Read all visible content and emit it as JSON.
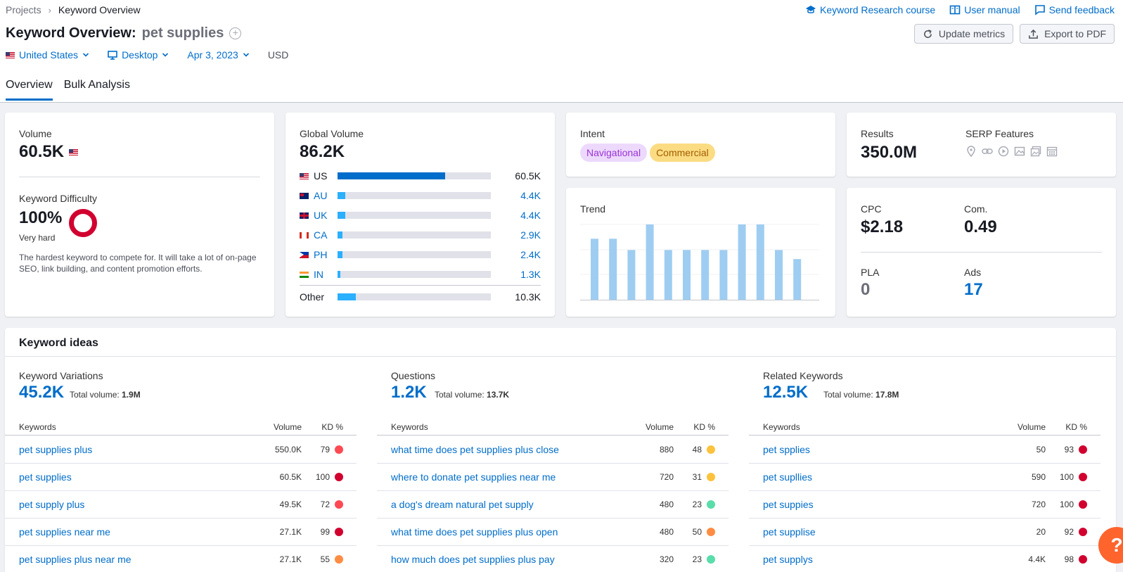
{
  "breadcrumb": {
    "root": "Projects",
    "current": "Keyword Overview"
  },
  "toplinks": {
    "course": "Keyword Research course",
    "manual": "User manual",
    "feedback": "Send feedback"
  },
  "title": {
    "prefix": "Keyword Overview:",
    "keyword": "pet supplies"
  },
  "actions": {
    "update": "Update metrics",
    "export": "Export to PDF"
  },
  "filters": {
    "country": "United States",
    "device": "Desktop",
    "date": "Apr 3, 2023",
    "currency": "USD"
  },
  "tabs": [
    "Overview",
    "Bulk Analysis"
  ],
  "volume": {
    "label": "Volume",
    "value": "60.5K",
    "kd_label": "Keyword Difficulty",
    "kd_value": "100%",
    "kd_level": "Very hard",
    "kd_desc": "The hardest keyword to compete for. It will take a lot of on-page SEO, link building, and content promotion efforts.",
    "kd_color": "#d1002f"
  },
  "global": {
    "label": "Global Volume",
    "value": "86.2K",
    "rows": [
      {
        "code": "US",
        "value": "60.5K",
        "share": 0.7
      },
      {
        "code": "AU",
        "value": "4.4K",
        "share": 0.05
      },
      {
        "code": "UK",
        "value": "4.4K",
        "share": 0.05
      },
      {
        "code": "CA",
        "value": "2.9K",
        "share": 0.03
      },
      {
        "code": "PH",
        "value": "2.4K",
        "share": 0.03
      },
      {
        "code": "IN",
        "value": "1.3K",
        "share": 0.015
      }
    ],
    "other": {
      "code": "Other",
      "value": "10.3K",
      "share": 0.12
    }
  },
  "intent": {
    "label": "Intent",
    "tags": [
      "Navigational",
      "Commercial"
    ]
  },
  "trend": {
    "label": "Trend",
    "values": [
      0.81,
      0.81,
      0.66,
      1.0,
      0.66,
      0.66,
      0.66,
      0.66,
      1.0,
      1.0,
      0.66,
      0.54
    ],
    "bar_color": "#9ecdf1"
  },
  "results": {
    "label": "Results",
    "value": "350.0M",
    "serp_label": "SERP Features",
    "serp_icons": [
      "location-pin-icon",
      "link-icon",
      "video-play-icon",
      "image-icon",
      "image-pack-icon",
      "calendar-grid-icon"
    ]
  },
  "metrics": {
    "cpc_label": "CPC",
    "cpc": "$2.18",
    "com_label": "Com.",
    "com": "0.49",
    "pla_label": "PLA",
    "pla": "0",
    "ads_label": "Ads",
    "ads": "17"
  },
  "ideas": {
    "heading": "Keyword ideas",
    "total_label": "Total volume:",
    "headers": {
      "kw": "Keywords",
      "vol": "Volume",
      "kd": "KD %"
    },
    "columns": [
      {
        "title": "Keyword Variations",
        "count": "45.2K",
        "total": "1.9M",
        "rows": [
          {
            "kw": "pet supplies plus",
            "vol": "550.0K",
            "kd": "79",
            "color": "#ff4953"
          },
          {
            "kw": "pet supplies",
            "vol": "60.5K",
            "kd": "100",
            "color": "#d1002f"
          },
          {
            "kw": "pet supply plus",
            "vol": "49.5K",
            "kd": "72",
            "color": "#ff4953"
          },
          {
            "kw": "pet supplies near me",
            "vol": "27.1K",
            "kd": "99",
            "color": "#d1002f"
          },
          {
            "kw": "pet supplies plus near me",
            "vol": "27.1K",
            "kd": "55",
            "color": "#ff8c43"
          }
        ]
      },
      {
        "title": "Questions",
        "count": "1.2K",
        "total": "13.7K",
        "rows": [
          {
            "kw": "what time does pet supplies plus close",
            "vol": "880",
            "kd": "48",
            "color": "#fdc23c"
          },
          {
            "kw": "where to donate pet supplies near me",
            "vol": "720",
            "kd": "31",
            "color": "#fdc23c"
          },
          {
            "kw": "a dog's dream natural pet supply",
            "vol": "480",
            "kd": "23",
            "color": "#59ddaa"
          },
          {
            "kw": "what time does pet supplies plus open",
            "vol": "480",
            "kd": "50",
            "color": "#ff8c43"
          },
          {
            "kw": "how much does pet supplies plus pay",
            "vol": "320",
            "kd": "23",
            "color": "#59ddaa"
          }
        ]
      },
      {
        "title": "Related Keywords",
        "count": "12.5K",
        "total": "17.8M",
        "rows": [
          {
            "kw": "pet spplies",
            "vol": "50",
            "kd": "93",
            "color": "#d1002f"
          },
          {
            "kw": "pet supllies",
            "vol": "590",
            "kd": "100",
            "color": "#d1002f"
          },
          {
            "kw": "pet suppies",
            "vol": "720",
            "kd": "100",
            "color": "#d1002f"
          },
          {
            "kw": "pet supplise",
            "vol": "20",
            "kd": "92",
            "color": "#d1002f"
          },
          {
            "kw": "pet supplys",
            "vol": "4.4K",
            "kd": "98",
            "color": "#d1002f"
          }
        ]
      }
    ]
  },
  "help": "?"
}
